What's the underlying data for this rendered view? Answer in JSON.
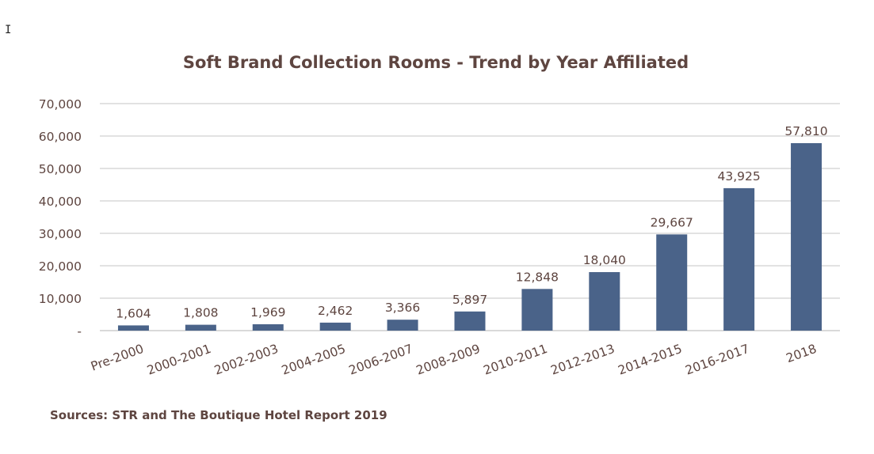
{
  "chart_data": {
    "type": "bar",
    "title": "Soft Brand Collection Rooms - Trend by Year Affiliated",
    "categories": [
      "Pre-2000",
      "2000-2001",
      "2002-2003",
      "2004-2005",
      "2006-2007",
      "2008-2009",
      "2010-2011",
      "2012-2013",
      "2014-2015",
      "2016-2017",
      "2018"
    ],
    "values": [
      1604,
      1808,
      1969,
      2462,
      3366,
      5897,
      12848,
      18040,
      29667,
      43925,
      57810
    ],
    "data_labels": [
      "1,604",
      "1,808",
      "1,969",
      "2,462",
      "3,366",
      "5,897",
      "12,848",
      "18,040",
      "29,667",
      "43,925",
      "57,810"
    ],
    "xlabel": "",
    "ylabel": "",
    "ylim": [
      0,
      70000
    ],
    "y_ticks": [
      0,
      10000,
      20000,
      30000,
      40000,
      50000,
      60000,
      70000
    ],
    "y_tick_labels": [
      "-",
      "10,000",
      "20,000",
      "30,000",
      "40,000",
      "50,000",
      "60,000",
      "70,000"
    ],
    "grid": true,
    "legend": "none",
    "bar_color": "#4a6389",
    "text_color": "#5e4540",
    "source_note": "Sources: STR and The Boutique Hotel Report 2019"
  }
}
